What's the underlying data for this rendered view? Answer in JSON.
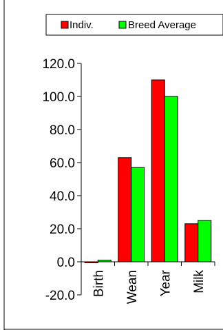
{
  "chart_data": {
    "type": "bar",
    "categories": [
      "Birth",
      "Wean",
      "Year",
      "Milk"
    ],
    "series": [
      {
        "name": "Indiv.",
        "color": "#ff0000",
        "values": [
          -0.5,
          63,
          110,
          23
        ]
      },
      {
        "name": "Breed Average",
        "color": "#00ff00",
        "values": [
          1,
          57,
          100,
          25
        ]
      }
    ],
    "ylim": [
      -20,
      120
    ],
    "yticks": [
      "120.0",
      "100.0",
      "80.0",
      "60.0",
      "40.0",
      "20.0",
      "0.0",
      "-20.0"
    ],
    "legend_position": "top",
    "grid": false
  }
}
